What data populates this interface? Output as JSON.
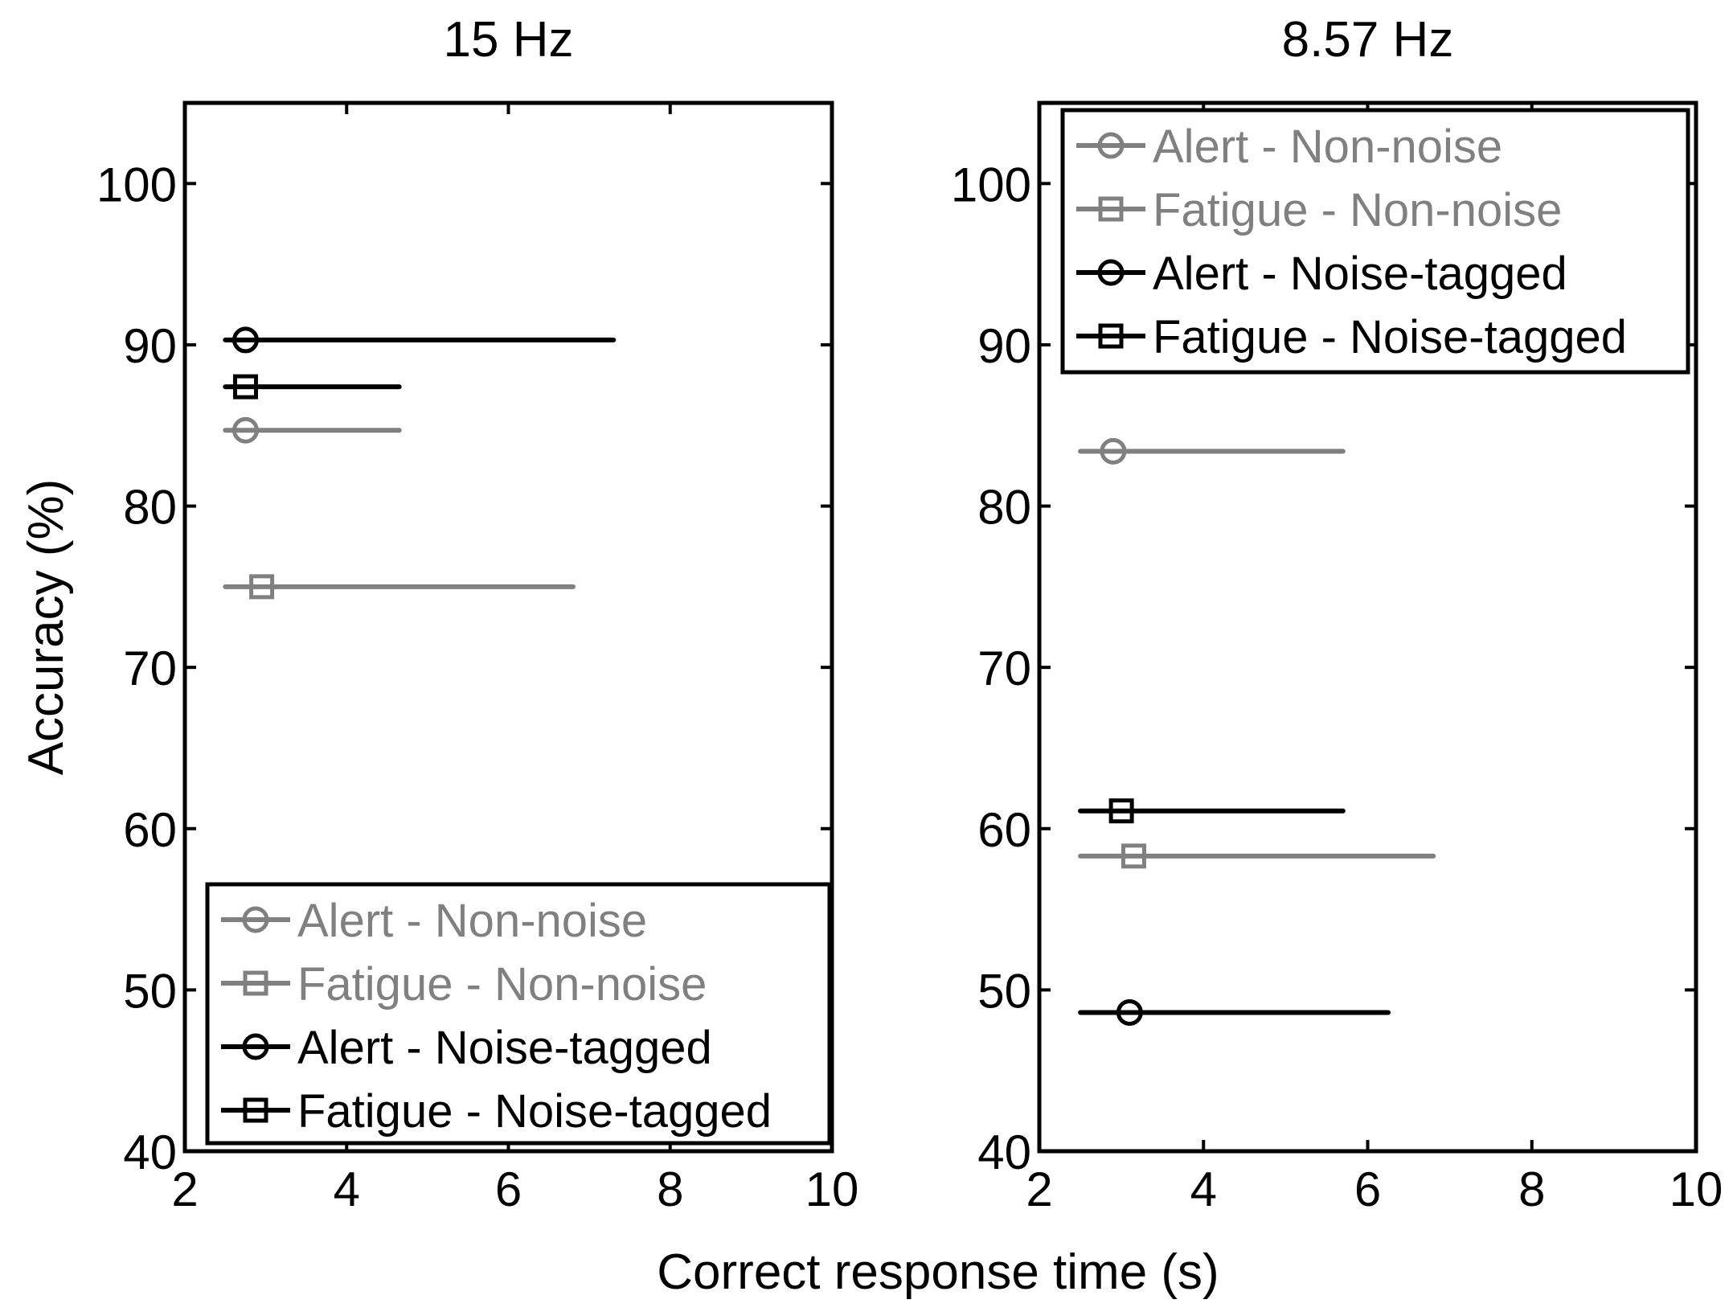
{
  "figure": {
    "xlabel": "Correct response time (s)"
  },
  "chart_data": [
    {
      "type": "scatter",
      "title": "15 Hz",
      "xlabel": "Correct response time (s)",
      "ylabel": "Accuracy (%)",
      "xlim": [
        2,
        10
      ],
      "ylim": [
        40,
        105
      ],
      "xticks": [
        "2",
        "4",
        "6",
        "8",
        "10"
      ],
      "yticks": [
        "40",
        "50",
        "60",
        "70",
        "80",
        "90",
        "100"
      ],
      "legend_position": "bottom",
      "error_bars": "horizontal",
      "series": [
        {
          "name": "Alert - Non-noise",
          "color": "#808080",
          "marker": "circle",
          "points": [
            {
              "x": 2.75,
              "y": 84.7,
              "xerr_low": 2.5,
              "xerr_high": 4.65
            }
          ]
        },
        {
          "name": "Fatigue - Non-noise",
          "color": "#808080",
          "marker": "square",
          "points": [
            {
              "x": 2.95,
              "y": 75.0,
              "xerr_low": 2.5,
              "xerr_high": 6.8
            }
          ]
        },
        {
          "name": "Alert - Noise-tagged",
          "color": "#000000",
          "marker": "circle",
          "points": [
            {
              "x": 2.75,
              "y": 90.3,
              "xerr_low": 2.5,
              "xerr_high": 7.3
            }
          ]
        },
        {
          "name": "Fatigue - Noise-tagged",
          "color": "#000000",
          "marker": "square",
          "points": [
            {
              "x": 2.75,
              "y": 87.4,
              "xerr_low": 2.5,
              "xerr_high": 4.65
            }
          ]
        }
      ]
    },
    {
      "type": "scatter",
      "title": "8.57 Hz",
      "xlabel": "Correct response time (s)",
      "ylabel": "",
      "xlim": [
        2,
        10
      ],
      "ylim": [
        40,
        105
      ],
      "xticks": [
        "2",
        "4",
        "6",
        "8",
        "10"
      ],
      "yticks": [
        "40",
        "50",
        "60",
        "70",
        "80",
        "90",
        "100"
      ],
      "legend_position": "top",
      "error_bars": "horizontal",
      "series": [
        {
          "name": "Alert - Non-noise",
          "color": "#808080",
          "marker": "circle",
          "points": [
            {
              "x": 2.9,
              "y": 83.4,
              "xerr_low": 2.5,
              "xerr_high": 5.7
            }
          ]
        },
        {
          "name": "Fatigue - Non-noise",
          "color": "#808080",
          "marker": "square",
          "points": [
            {
              "x": 3.15,
              "y": 58.3,
              "xerr_low": 2.5,
              "xerr_high": 6.8
            }
          ]
        },
        {
          "name": "Alert - Noise-tagged",
          "color": "#000000",
          "marker": "circle",
          "points": [
            {
              "x": 3.1,
              "y": 48.6,
              "xerr_low": 2.5,
              "xerr_high": 6.25
            }
          ]
        },
        {
          "name": "Fatigue - Noise-tagged",
          "color": "#000000",
          "marker": "square",
          "points": [
            {
              "x": 3.0,
              "y": 61.1,
              "xerr_low": 2.5,
              "xerr_high": 5.7
            }
          ]
        }
      ]
    }
  ]
}
